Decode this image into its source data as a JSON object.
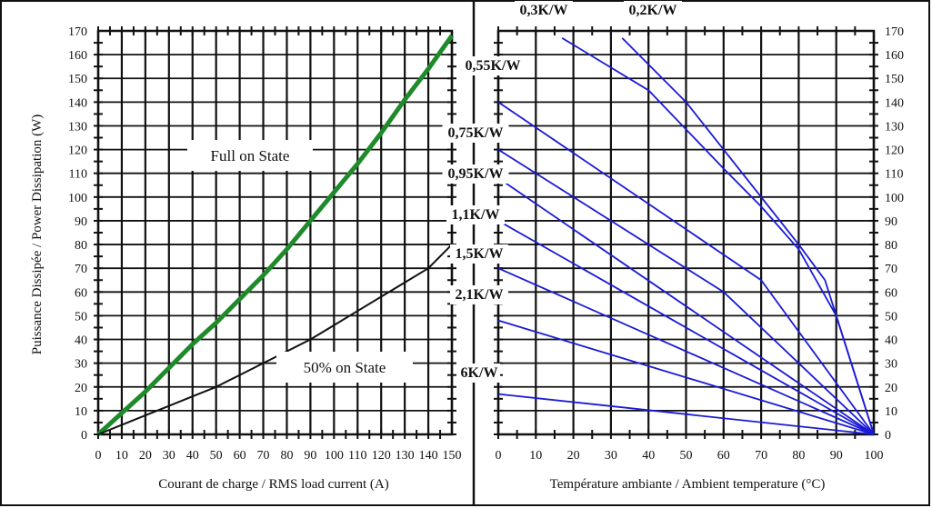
{
  "chart_data": [
    {
      "type": "line",
      "xlabel": "Courant de charge / RMS load current (A)",
      "ylabel": "Puissance Dissipée / Power Dissipation (W)",
      "xlim": [
        0,
        150
      ],
      "ylim": [
        0,
        170
      ],
      "xticks": [
        "0",
        "10",
        "20",
        "30",
        "40",
        "50",
        "60",
        "70",
        "80",
        "90",
        "100",
        "110",
        "120",
        "130",
        "140",
        "150"
      ],
      "yticks": [
        "0",
        "10",
        "20",
        "30",
        "40",
        "50",
        "60",
        "70",
        "80",
        "90",
        "100",
        "110",
        "120",
        "130",
        "140",
        "150",
        "160",
        "170"
      ],
      "grid": true,
      "annotations": [
        "Full on State",
        "50% on State"
      ],
      "series": [
        {
          "name": "Full on State",
          "color": "#1f8a2a",
          "x": [
            0,
            10,
            20,
            30,
            40,
            50,
            60,
            70,
            80,
            90,
            100,
            110,
            120,
            130,
            140,
            150
          ],
          "y": [
            0,
            9,
            18,
            28,
            38,
            47,
            57,
            67,
            78,
            90,
            102,
            114,
            127,
            141,
            154,
            168
          ]
        },
        {
          "name": "50% on State",
          "color": "#111111",
          "x": [
            0,
            10,
            20,
            30,
            40,
            50,
            60,
            70,
            80,
            90,
            100,
            110,
            120,
            130,
            140,
            150
          ],
          "y": [
            0,
            4,
            8,
            12,
            16,
            20,
            25,
            30,
            35,
            40,
            46,
            52,
            58,
            64,
            70,
            80
          ]
        }
      ]
    },
    {
      "type": "line",
      "xlabel": "Température ambiante / Ambient temperature (°C)",
      "xlim": [
        0,
        100
      ],
      "ylim": [
        0,
        170
      ],
      "xticks": [
        "0",
        "10",
        "20",
        "30",
        "40",
        "50",
        "60",
        "70",
        "80",
        "90",
        "100"
      ],
      "yticks": [
        "0",
        "10",
        "20",
        "30",
        "40",
        "50",
        "60",
        "70",
        "80",
        "90",
        "100",
        "110",
        "120",
        "130",
        "140",
        "150",
        "160",
        "170"
      ],
      "grid": true,
      "line_color": "#1a1ad6",
      "series": [
        {
          "name": "0,2K/W",
          "x": [
            33,
            50,
            60,
            70,
            80,
            87,
            100
          ],
          "y": [
            167,
            140,
            120,
            100,
            80,
            65,
            0
          ]
        },
        {
          "name": "0,3K/W",
          "x": [
            17,
            40,
            60,
            70,
            80,
            90,
            100
          ],
          "y": [
            167,
            145,
            112,
            96,
            78,
            50,
            0
          ]
        },
        {
          "name": "0,55K/W",
          "x": [
            0,
            70,
            100
          ],
          "y": [
            140,
            65,
            0
          ]
        },
        {
          "name": "0,75K/W",
          "x": [
            0,
            60,
            100
          ],
          "y": [
            120,
            60,
            0
          ]
        },
        {
          "name": "0,95K/W",
          "x": [
            0,
            100
          ],
          "y": [
            108,
            0
          ]
        },
        {
          "name": "1,1K/W",
          "x": [
            0,
            100
          ],
          "y": [
            90,
            0
          ]
        },
        {
          "name": "1,5K/W",
          "x": [
            0,
            100
          ],
          "y": [
            70,
            0
          ]
        },
        {
          "name": "2,1K/W",
          "x": [
            0,
            100
          ],
          "y": [
            48,
            0
          ]
        },
        {
          "name": "6K/W",
          "x": [
            0,
            100
          ],
          "y": [
            17,
            0
          ]
        }
      ]
    }
  ]
}
